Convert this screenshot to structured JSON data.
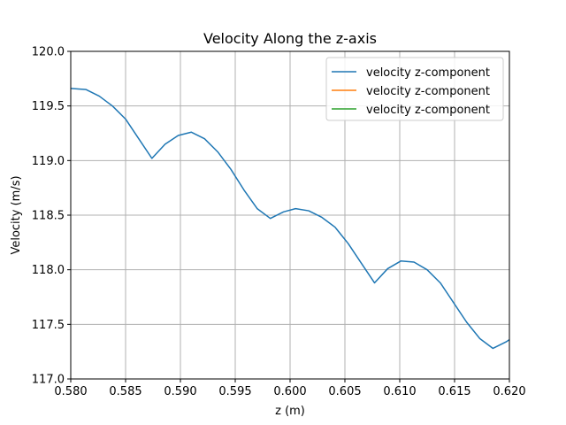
{
  "chart_data": {
    "type": "line",
    "title": "Velocity Along the z-axis",
    "xlabel": "z (m)",
    "ylabel": "Velocity (m/s)",
    "xlim": [
      0.58,
      0.62
    ],
    "ylim": [
      117.0,
      120.0
    ],
    "xticks": [
      "0.580",
      "0.585",
      "0.590",
      "0.595",
      "0.600",
      "0.605",
      "0.610",
      "0.615",
      "0.620"
    ],
    "yticks": [
      "117.0",
      "117.5",
      "118.0",
      "118.5",
      "119.0",
      "119.5",
      "120.0"
    ],
    "grid": true,
    "legend_position": "top-right",
    "series": [
      {
        "name": "velocity z-component",
        "color": "#1f77b4",
        "x": [
          0.58,
          0.5814,
          0.5826,
          0.5838,
          0.585,
          0.5862,
          0.5874,
          0.5886,
          0.5898,
          0.591,
          0.5922,
          0.5934,
          0.5946,
          0.5958,
          0.597,
          0.5982,
          0.5994,
          0.6005,
          0.6017,
          0.6029,
          0.6041,
          0.6053,
          0.6065,
          0.6077,
          0.6089,
          0.6101,
          0.6113,
          0.6125,
          0.6137,
          0.6149,
          0.6161,
          0.6173,
          0.6185,
          0.6197,
          0.62
        ],
        "y": [
          119.66,
          119.65,
          119.59,
          119.5,
          119.38,
          119.2,
          119.02,
          119.15,
          119.23,
          119.26,
          119.2,
          119.08,
          118.92,
          118.73,
          118.56,
          118.47,
          118.53,
          118.56,
          118.54,
          118.48,
          118.39,
          118.24,
          118.06,
          117.88,
          118.01,
          118.08,
          118.07,
          118.0,
          117.88,
          117.7,
          117.52,
          117.37,
          117.28,
          117.34,
          117.36
        ]
      },
      {
        "name": "velocity z-component",
        "color": "#ff7f0e",
        "x": [],
        "y": []
      },
      {
        "name": "velocity z-component",
        "color": "#2ca02c",
        "x": [],
        "y": []
      }
    ]
  }
}
